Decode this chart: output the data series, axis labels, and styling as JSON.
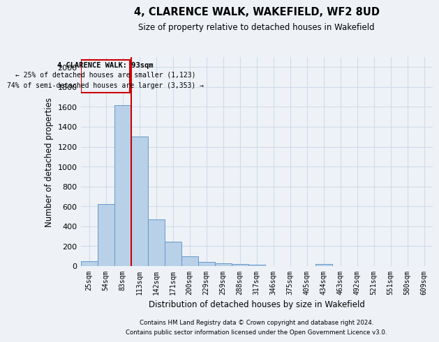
{
  "title": "4, CLARENCE WALK, WAKEFIELD, WF2 8UD",
  "subtitle": "Size of property relative to detached houses in Wakefield",
  "xlabel": "Distribution of detached houses by size in Wakefield",
  "ylabel": "Number of detached properties",
  "categories": [
    "25sqm",
    "54sqm",
    "83sqm",
    "113sqm",
    "142sqm",
    "171sqm",
    "200sqm",
    "229sqm",
    "259sqm",
    "288sqm",
    "317sqm",
    "346sqm",
    "375sqm",
    "405sqm",
    "434sqm",
    "463sqm",
    "492sqm",
    "521sqm",
    "551sqm",
    "580sqm",
    "609sqm"
  ],
  "values": [
    50,
    620,
    1620,
    1300,
    470,
    245,
    95,
    45,
    30,
    20,
    15,
    0,
    0,
    0,
    20,
    0,
    0,
    0,
    0,
    0,
    0
  ],
  "bar_color": "#b8d0e8",
  "bar_edge_color": "#6699cc",
  "grid_color": "#d0dce8",
  "annotation_box_color": "#cc0000",
  "property_line_color": "#cc0000",
  "property_bin_index": 2,
  "annotation_title": "4 CLARENCE WALK: 93sqm",
  "annotation_line1": "← 25% of detached houses are smaller (1,123)",
  "annotation_line2": "74% of semi-detached houses are larger (3,353) →",
  "ylim": [
    0,
    2100
  ],
  "yticks": [
    0,
    200,
    400,
    600,
    800,
    1000,
    1200,
    1400,
    1600,
    1800,
    2000
  ],
  "footer_line1": "Contains HM Land Registry data © Crown copyright and database right 2024.",
  "footer_line2": "Contains public sector information licensed under the Open Government Licence v3.0.",
  "background_color": "#eef2f7"
}
